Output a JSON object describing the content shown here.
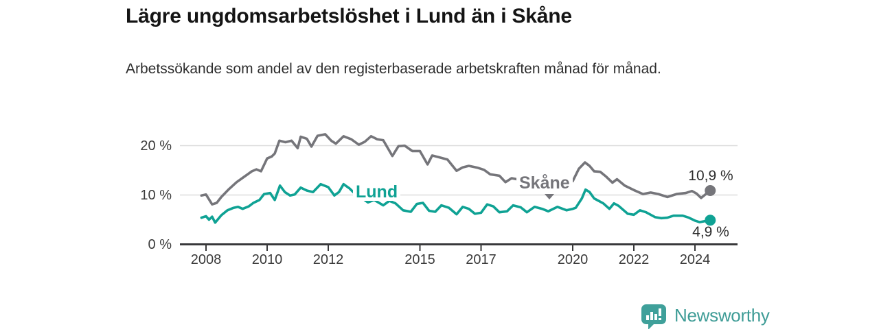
{
  "title": "Lägre ungdomsarbetslöshet i Lund än i Skåne",
  "subtitle": "Arbetssökande som andel av den registerbaserade arbetskraften månad för månad.",
  "branding": {
    "logo_text": "Newsworthy",
    "logo_icon": "bar-chart-speech-bubble-icon",
    "brand_color": "#3E9C96"
  },
  "chart_data": {
    "type": "line",
    "title": "Lägre ungdomsarbetslöshet i Lund än i Skåne",
    "subtitle": "Arbetssökande som andel av den registerbaserade arbetskraften månad för månad.",
    "unit": "%",
    "grid": "horizontal",
    "legend": "inline-labels",
    "x_axis": {
      "tick_years": [
        2008,
        2010,
        2012,
        2015,
        2017,
        2020,
        2022,
        2024
      ],
      "tick_labels": [
        "2008",
        "2010",
        "2012",
        "2015",
        "2017",
        "2020",
        "2022",
        "2024"
      ],
      "range": [
        2007.2,
        2025.4
      ]
    },
    "y_axis": {
      "tick_values": [
        0,
        10,
        20
      ],
      "tick_labels": [
        "0 %",
        "10 %",
        "20 %"
      ],
      "range": [
        0,
        23.2
      ]
    },
    "series": [
      {
        "name": "Skåne",
        "color": "#75757A",
        "end_label": "10,9 %",
        "end_value": 10.9,
        "points": [
          [
            2007.85,
            9.9
          ],
          [
            2008.0,
            10.1
          ],
          [
            2008.2,
            8.1
          ],
          [
            2008.35,
            8.4
          ],
          [
            2008.5,
            9.6
          ],
          [
            2008.75,
            11.2
          ],
          [
            2009.0,
            12.6
          ],
          [
            2009.25,
            13.7
          ],
          [
            2009.5,
            14.8
          ],
          [
            2009.65,
            15.2
          ],
          [
            2009.8,
            14.8
          ],
          [
            2010.0,
            17.4
          ],
          [
            2010.15,
            17.8
          ],
          [
            2010.25,
            18.4
          ],
          [
            2010.4,
            21.0
          ],
          [
            2010.6,
            20.7
          ],
          [
            2010.8,
            21.0
          ],
          [
            2011.0,
            19.5
          ],
          [
            2011.1,
            21.8
          ],
          [
            2011.3,
            21.4
          ],
          [
            2011.45,
            19.8
          ],
          [
            2011.65,
            22.0
          ],
          [
            2011.9,
            22.3
          ],
          [
            2012.1,
            21.0
          ],
          [
            2012.25,
            20.4
          ],
          [
            2012.5,
            21.9
          ],
          [
            2012.75,
            21.3
          ],
          [
            2013.0,
            20.2
          ],
          [
            2013.2,
            20.8
          ],
          [
            2013.4,
            21.9
          ],
          [
            2013.6,
            21.3
          ],
          [
            2013.8,
            21.1
          ],
          [
            2014.1,
            17.9
          ],
          [
            2014.3,
            19.9
          ],
          [
            2014.5,
            20.0
          ],
          [
            2014.75,
            18.9
          ],
          [
            2015.0,
            18.9
          ],
          [
            2015.25,
            16.2
          ],
          [
            2015.4,
            18.0
          ],
          [
            2015.6,
            17.7
          ],
          [
            2015.9,
            17.2
          ],
          [
            2016.2,
            14.9
          ],
          [
            2016.4,
            15.6
          ],
          [
            2016.6,
            15.9
          ],
          [
            2016.9,
            15.5
          ],
          [
            2017.1,
            15.1
          ],
          [
            2017.3,
            14.2
          ],
          [
            2017.6,
            13.9
          ],
          [
            2017.8,
            12.6
          ],
          [
            2018.0,
            13.4
          ],
          [
            2018.25,
            13.1
          ],
          [
            2018.5,
            12.8
          ],
          [
            2018.75,
            12.3
          ],
          [
            2019.0,
            11.8
          ],
          [
            2019.25,
            11.5
          ],
          [
            2019.5,
            12.0
          ],
          [
            2019.75,
            12.2
          ],
          [
            2020.0,
            12.8
          ],
          [
            2020.2,
            15.3
          ],
          [
            2020.4,
            16.6
          ],
          [
            2020.55,
            15.9
          ],
          [
            2020.7,
            14.8
          ],
          [
            2020.9,
            14.7
          ],
          [
            2021.1,
            13.7
          ],
          [
            2021.3,
            12.5
          ],
          [
            2021.45,
            13.2
          ],
          [
            2021.7,
            11.9
          ],
          [
            2022.0,
            11.0
          ],
          [
            2022.3,
            10.2
          ],
          [
            2022.55,
            10.5
          ],
          [
            2022.8,
            10.2
          ],
          [
            2023.1,
            9.6
          ],
          [
            2023.4,
            10.2
          ],
          [
            2023.7,
            10.4
          ],
          [
            2023.9,
            10.8
          ],
          [
            2024.05,
            10.3
          ],
          [
            2024.2,
            9.4
          ],
          [
            2024.5,
            10.9
          ]
        ]
      },
      {
        "name": "Lund",
        "color": "#0FA294",
        "end_label": "4,9 %",
        "end_value": 4.9,
        "points": [
          [
            2007.85,
            5.4
          ],
          [
            2008.0,
            5.7
          ],
          [
            2008.1,
            5.0
          ],
          [
            2008.2,
            5.6
          ],
          [
            2008.3,
            4.4
          ],
          [
            2008.5,
            5.9
          ],
          [
            2008.7,
            6.9
          ],
          [
            2008.9,
            7.4
          ],
          [
            2009.05,
            7.6
          ],
          [
            2009.2,
            7.2
          ],
          [
            2009.4,
            7.7
          ],
          [
            2009.55,
            8.4
          ],
          [
            2009.75,
            9.0
          ],
          [
            2009.9,
            10.2
          ],
          [
            2010.1,
            10.4
          ],
          [
            2010.25,
            9.0
          ],
          [
            2010.42,
            11.9
          ],
          [
            2010.58,
            10.6
          ],
          [
            2010.75,
            9.9
          ],
          [
            2010.9,
            10.1
          ],
          [
            2011.1,
            11.5
          ],
          [
            2011.3,
            10.9
          ],
          [
            2011.5,
            10.6
          ],
          [
            2011.75,
            12.2
          ],
          [
            2012.0,
            11.6
          ],
          [
            2012.2,
            9.9
          ],
          [
            2012.35,
            10.6
          ],
          [
            2012.5,
            12.2
          ],
          [
            2012.7,
            11.3
          ],
          [
            2012.9,
            10.1
          ],
          [
            2013.1,
            9.4
          ],
          [
            2013.3,
            8.5
          ],
          [
            2013.5,
            9.0
          ],
          [
            2013.8,
            7.9
          ],
          [
            2014.0,
            8.8
          ],
          [
            2014.2,
            8.3
          ],
          [
            2014.45,
            6.9
          ],
          [
            2014.7,
            6.6
          ],
          [
            2014.9,
            8.2
          ],
          [
            2015.1,
            8.4
          ],
          [
            2015.3,
            6.8
          ],
          [
            2015.5,
            6.6
          ],
          [
            2015.7,
            7.9
          ],
          [
            2015.95,
            7.4
          ],
          [
            2016.2,
            6.1
          ],
          [
            2016.4,
            7.6
          ],
          [
            2016.6,
            7.2
          ],
          [
            2016.8,
            6.2
          ],
          [
            2017.0,
            6.4
          ],
          [
            2017.2,
            8.1
          ],
          [
            2017.4,
            7.7
          ],
          [
            2017.6,
            6.5
          ],
          [
            2017.85,
            6.7
          ],
          [
            2018.05,
            7.9
          ],
          [
            2018.3,
            7.5
          ],
          [
            2018.5,
            6.5
          ],
          [
            2018.75,
            7.6
          ],
          [
            2019.0,
            7.2
          ],
          [
            2019.2,
            6.7
          ],
          [
            2019.5,
            7.6
          ],
          [
            2019.8,
            6.9
          ],
          [
            2020.0,
            7.2
          ],
          [
            2020.1,
            7.4
          ],
          [
            2020.3,
            9.3
          ],
          [
            2020.42,
            11.1
          ],
          [
            2020.55,
            10.6
          ],
          [
            2020.7,
            9.3
          ],
          [
            2021.0,
            8.3
          ],
          [
            2021.2,
            7.2
          ],
          [
            2021.35,
            8.3
          ],
          [
            2021.5,
            7.8
          ],
          [
            2021.8,
            6.2
          ],
          [
            2022.0,
            6.0
          ],
          [
            2022.2,
            6.9
          ],
          [
            2022.4,
            6.5
          ],
          [
            2022.7,
            5.5
          ],
          [
            2022.9,
            5.3
          ],
          [
            2023.1,
            5.4
          ],
          [
            2023.3,
            5.8
          ],
          [
            2023.6,
            5.8
          ],
          [
            2023.8,
            5.4
          ],
          [
            2024.0,
            4.8
          ],
          [
            2024.15,
            4.5
          ],
          [
            2024.5,
            4.9
          ]
        ]
      }
    ]
  }
}
